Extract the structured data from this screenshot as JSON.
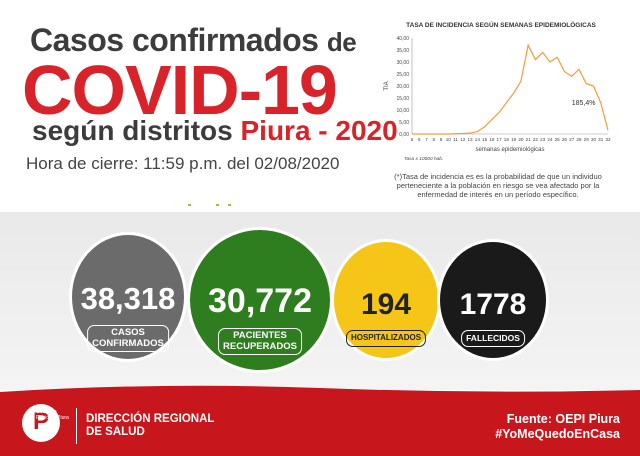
{
  "header": {
    "line1_main": "Casos confirmados",
    "line1_small": "de",
    "line2": "COVID-19",
    "line3_main": "según distritos",
    "line3_highlight": "Piura - 2020",
    "closing": "Hora de cierre: 11:59 p.m. del 02/08/2020"
  },
  "chart_data": {
    "type": "line",
    "title": "TASA DE INCIDENCIA SEGÚN SEMANAS EPIDEMIOLÓGICAS",
    "xlabel": "semanas epidemiológicas",
    "ylabel": "TIA",
    "footnote": "Tasa x 10000 hab.",
    "ylim": [
      0,
      40
    ],
    "yticks": [
      "0,00",
      "5,00",
      "10,00",
      "15,00",
      "20,00",
      "25,00",
      "30,00",
      "35,00",
      "40,00"
    ],
    "x": [
      5,
      6,
      7,
      8,
      9,
      10,
      11,
      12,
      13,
      14,
      15,
      16,
      17,
      18,
      19,
      20,
      21,
      22,
      23,
      24,
      25,
      26,
      27,
      28,
      29,
      30,
      31,
      32
    ],
    "values": [
      0,
      0,
      0,
      0,
      0,
      0,
      0.1,
      0.2,
      0.4,
      1,
      3,
      6,
      9,
      13,
      17,
      22,
      37,
      31,
      34,
      30,
      32,
      26,
      24,
      27,
      21,
      20,
      13,
      1.5
    ],
    "annotation": "185,4%",
    "series_color": "#f39c3c"
  },
  "note": "(*)Tasa de incidencia es es la probabilidad de que un individuo perteneciente a la población en riesgo se vea afectado por la enfermedad de interés en un período específico.",
  "stats": [
    {
      "value": "38,318",
      "label1": "CASOS",
      "label2": "CONFIRMADOS",
      "color": "#6b6b6b"
    },
    {
      "value": "30,772",
      "label1": "PACIENTES",
      "label2": "RECUPERADOS",
      "color": "#2e7d1e"
    },
    {
      "value": "194",
      "label1": "HOSPITALIZADOS",
      "label2": "",
      "color": "#f5c518"
    },
    {
      "value": "1778",
      "label1": "FALLECIDOS",
      "label2": "",
      "color": "#1a1a1a"
    }
  ],
  "footer": {
    "logo_letter": "P",
    "logo_text": "Gobierno Regional Piura",
    "direction": "DIRECCIÓN REGIONAL DE SALUD",
    "source": "Fuente: OEPI Piura",
    "hashtag": "#YoMeQuedoEnCasa"
  }
}
